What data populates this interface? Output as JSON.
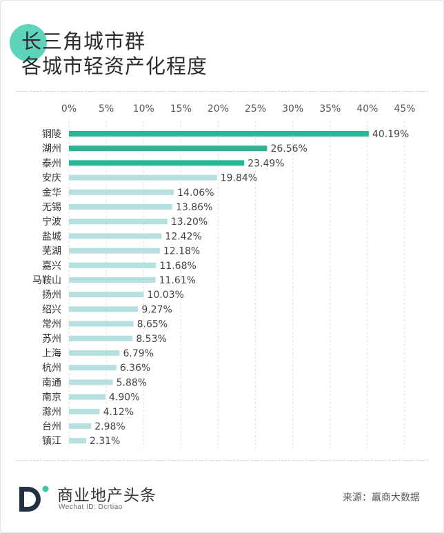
{
  "title": {
    "line1": "长三角城市群",
    "line2": "各城市轻资产化程度"
  },
  "chart_data": {
    "type": "bar",
    "orientation": "horizontal",
    "categories": [
      "铜陵",
      "湖州",
      "泰州",
      "安庆",
      "金华",
      "无锡",
      "宁波",
      "盐城",
      "芜湖",
      "嘉兴",
      "马鞍山",
      "扬州",
      "绍兴",
      "常州",
      "苏州",
      "上海",
      "杭州",
      "南通",
      "南京",
      "滁州",
      "台州",
      "镇江"
    ],
    "values": [
      40.19,
      26.56,
      23.49,
      19.84,
      14.06,
      13.86,
      13.2,
      12.42,
      12.18,
      11.68,
      11.61,
      10.03,
      9.27,
      8.65,
      8.53,
      6.79,
      6.36,
      5.88,
      4.9,
      4.12,
      2.98,
      2.31
    ],
    "value_labels": [
      "40.19%",
      "26.56%",
      "23.49%",
      "19.84%",
      "14.06%",
      "13.86%",
      "13.20%",
      "12.42%",
      "12.18%",
      "11.68%",
      "11.61%",
      "10.03%",
      "9.27%",
      "8.65%",
      "8.53%",
      "6.79%",
      "6.36%",
      "5.88%",
      "4.90%",
      "4.12%",
      "2.98%",
      "2.31%"
    ],
    "x_ticks": [
      "0%",
      "5%",
      "10%",
      "15%",
      "20%",
      "25%",
      "30%",
      "35%",
      "40%",
      "45%"
    ],
    "xlim": [
      0,
      45
    ],
    "grid": "vertical-dashed",
    "highlight_count": 3,
    "colors": {
      "highlight": "#2ab597",
      "normal": "#b5e0df",
      "grid": "#d2e3e1"
    }
  },
  "footer": {
    "brand": "商业地产头条",
    "wechat": "Wechat ID: Dcrtiao",
    "source": "来源：赢商大数据",
    "logo_icon": "d-letter-logo-icon"
  }
}
